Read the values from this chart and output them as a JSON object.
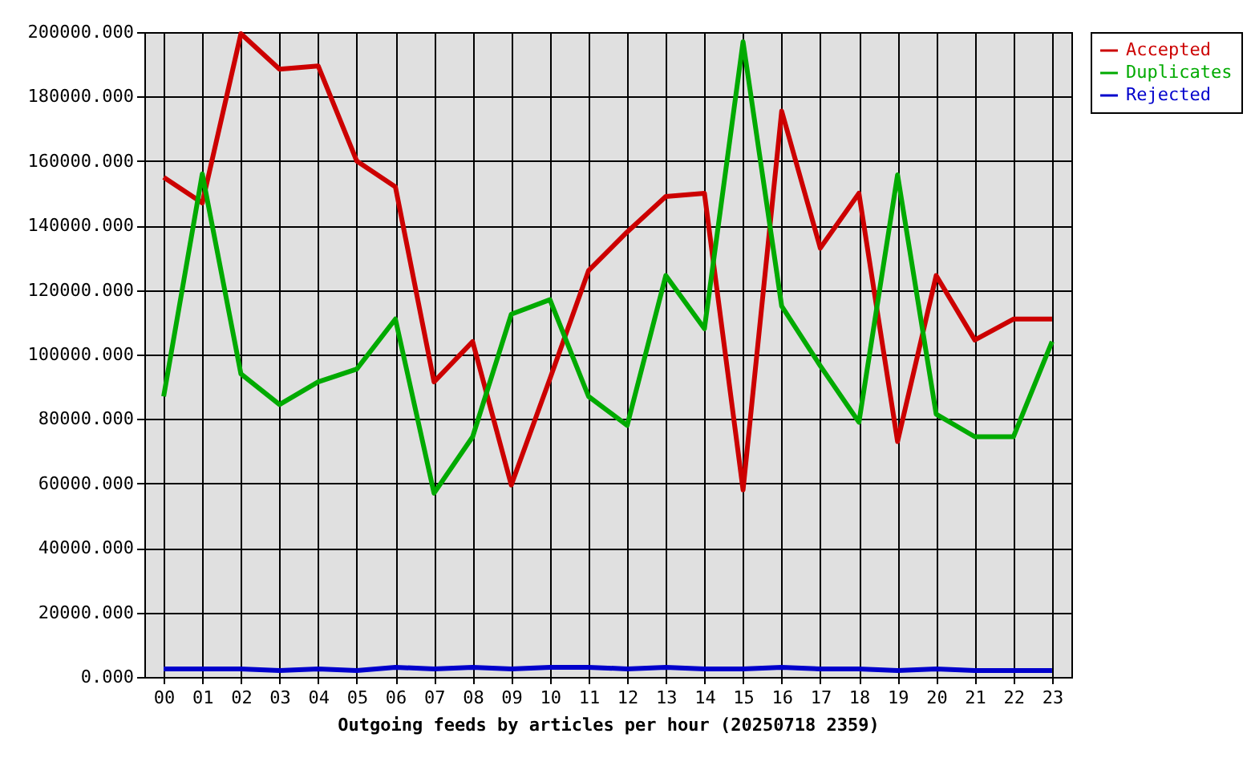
{
  "chart_data": {
    "type": "line",
    "xlabel": "Outgoing feeds by articles per hour (20250718 2359)",
    "categories": [
      "00",
      "01",
      "02",
      "03",
      "04",
      "05",
      "06",
      "07",
      "08",
      "09",
      "10",
      "11",
      "12",
      "13",
      "14",
      "15",
      "16",
      "17",
      "18",
      "19",
      "20",
      "21",
      "22",
      "23"
    ],
    "series": [
      {
        "name": "Accepted",
        "color": "#cc0000",
        "values": [
          155000,
          147000,
          199500,
          188500,
          189500,
          160000,
          152000,
          91500,
          104000,
          59500,
          92500,
          126000,
          138000,
          149000,
          150000,
          58000,
          175500,
          133000,
          150000,
          73000,
          124500,
          104500,
          111000,
          111000
        ]
      },
      {
        "name": "Duplicates",
        "color": "#00aa00",
        "values": [
          87000,
          156000,
          94000,
          84500,
          91500,
          95500,
          111000,
          57000,
          74500,
          112500,
          117000,
          87000,
          78000,
          124500,
          108000,
          197000,
          115000,
          96500,
          79000,
          155700,
          81500,
          74500,
          74500,
          104000
        ]
      },
      {
        "name": "Rejected",
        "color": "#0000cc",
        "values": [
          2500,
          2500,
          2500,
          2000,
          2500,
          2000,
          3000,
          2500,
          3000,
          2500,
          3000,
          3000,
          2500,
          3000,
          2500,
          2500,
          3000,
          2500,
          2500,
          2000,
          2500,
          2000,
          2000,
          2000
        ]
      }
    ],
    "ylim": [
      0,
      200000
    ],
    "yticks": [
      {
        "value": 0,
        "label": "0.000"
      },
      {
        "value": 20000,
        "label": "20000.000"
      },
      {
        "value": 40000,
        "label": "40000.000"
      },
      {
        "value": 60000,
        "label": "60000.000"
      },
      {
        "value": 80000,
        "label": "80000.000"
      },
      {
        "value": 100000,
        "label": "100000.000"
      },
      {
        "value": 120000,
        "label": "120000.000"
      },
      {
        "value": 140000,
        "label": "140000.000"
      },
      {
        "value": 160000,
        "label": "160000.000"
      },
      {
        "value": 180000,
        "label": "180000.000"
      },
      {
        "value": 200000,
        "label": "200000.000"
      }
    ],
    "grid": true,
    "legend": "top right"
  }
}
